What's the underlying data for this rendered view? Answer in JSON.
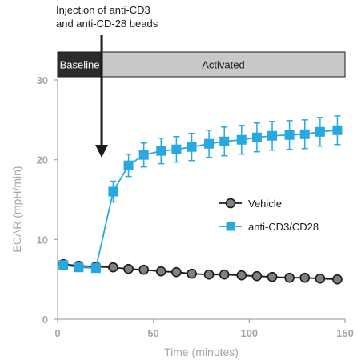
{
  "chart_data": {
    "type": "line",
    "xlabel": "Time (minutes)",
    "ylabel": "ECAR (mpH/min)",
    "xlim": [
      0,
      150
    ],
    "ylim": [
      0,
      30
    ],
    "x_ticks": [
      "0",
      "50",
      "100",
      "150"
    ],
    "y_ticks": [
      "0",
      "10",
      "20",
      "30"
    ],
    "grid": false,
    "legend_position": "center-right",
    "annotation": {
      "lines": [
        "Injection of anti-CD3",
        "and anti-CD-28 beads"
      ],
      "x": 23
    },
    "phases": [
      {
        "label": "Baseline",
        "x_start": 0,
        "x_end": 23,
        "fill": "#2b2b2b",
        "text_color": "#ffffff"
      },
      {
        "label": "Activated",
        "x_start": 23,
        "x_end": 150,
        "fill": "#c8c8c8",
        "text_color": "#1a1a1a"
      }
    ],
    "series": [
      {
        "name": "Vehicle",
        "color": "#1a1a1a",
        "marker_fill": "#808080",
        "marker": "circle",
        "x": [
          3,
          11,
          20,
          29,
          37,
          45,
          54,
          62,
          70,
          79,
          87,
          96,
          104,
          112,
          121,
          129,
          137,
          146
        ],
        "y": [
          6.9,
          6.7,
          6.6,
          6.5,
          6.3,
          6.2,
          6.0,
          5.9,
          5.7,
          5.6,
          5.6,
          5.5,
          5.4,
          5.3,
          5.2,
          5.2,
          5.1,
          5.0
        ],
        "err": [
          0.2,
          0.2,
          0.2,
          0.2,
          0.2,
          0.2,
          0.2,
          0.2,
          0.2,
          0.2,
          0.2,
          0.2,
          0.2,
          0.2,
          0.2,
          0.2,
          0.2,
          0.2
        ]
      },
      {
        "name": "anti-CD3/CD28",
        "color": "#29a8df",
        "marker_fill": "#29a8df",
        "marker": "square",
        "x": [
          3,
          11,
          20,
          29,
          37,
          45,
          54,
          62,
          70,
          79,
          87,
          96,
          104,
          112,
          121,
          129,
          137,
          146
        ],
        "y": [
          6.8,
          6.5,
          6.4,
          16.0,
          19.3,
          20.6,
          21.1,
          21.3,
          21.6,
          22.0,
          22.3,
          22.5,
          22.8,
          23.0,
          23.1,
          23.2,
          23.5,
          23.7
        ],
        "err": [
          0.3,
          0.3,
          0.3,
          1.3,
          1.4,
          1.5,
          1.6,
          1.6,
          1.7,
          1.7,
          1.8,
          1.8,
          1.8,
          1.8,
          1.8,
          1.8,
          1.8,
          1.8
        ]
      }
    ]
  }
}
